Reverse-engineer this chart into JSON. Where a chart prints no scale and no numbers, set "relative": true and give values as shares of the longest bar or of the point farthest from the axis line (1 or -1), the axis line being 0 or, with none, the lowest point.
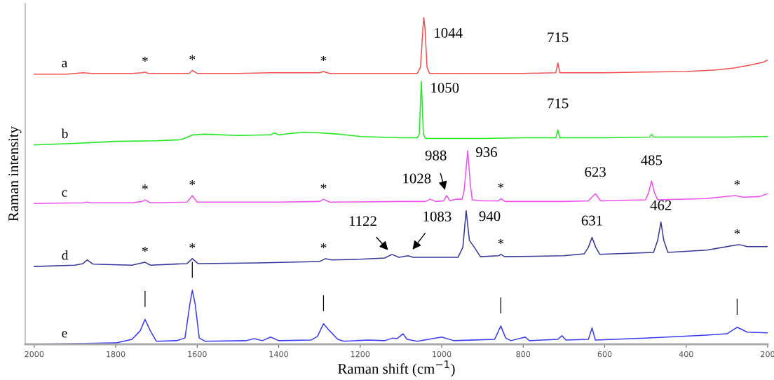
{
  "chart_data": {
    "type": "line",
    "relative": true,
    "xlabel": "Raman shift (cm$^{−1}$)",
    "ylabel": "Raman intensity",
    "xlim": [
      2022,
      200
    ],
    "xticks": [
      2000,
      1800,
      1600,
      1400,
      1200,
      1000,
      800,
      600,
      400,
      200
    ],
    "legend": false,
    "grid": false,
    "marker": "none",
    "line_style": "solid",
    "series": [
      {
        "name": "a",
        "color": "#f25050",
        "x": [
          2000,
          1920,
          1880,
          1860,
          1800,
          1760,
          1735,
          1728,
          1720,
          1620,
          1612,
          1600,
          1500,
          1420,
          1300,
          1290,
          1275,
          1100,
          1060,
          1052,
          1046,
          1044,
          1041,
          1036,
          1030,
          900,
          800,
          720,
          715,
          710,
          600,
          500,
          400,
          320,
          280,
          240,
          210,
          200
        ],
        "values": [
          0.827,
          0.827,
          0.831,
          0.829,
          0.829,
          0.829,
          0.831,
          0.833,
          0.829,
          0.829,
          0.838,
          0.829,
          0.829,
          0.831,
          0.831,
          0.835,
          0.829,
          0.829,
          0.829,
          0.848,
          0.968,
          1.0,
          0.968,
          0.848,
          0.829,
          0.829,
          0.829,
          0.831,
          0.861,
          0.831,
          0.831,
          0.833,
          0.835,
          0.84,
          0.846,
          0.855,
          0.864,
          0.87
        ]
      },
      {
        "name": "b",
        "color": "#22e622",
        "x": [
          2000,
          1900,
          1800,
          1700,
          1640,
          1610,
          1580,
          1500,
          1420,
          1410,
          1400,
          1340,
          1300,
          1250,
          1200,
          1100,
          1060,
          1055,
          1050,
          1045,
          1040,
          900,
          800,
          720,
          715,
          710,
          600,
          490,
          485,
          480,
          400,
          300,
          200
        ],
        "values": [
          0.61,
          0.615,
          0.621,
          0.623,
          0.626,
          0.641,
          0.643,
          0.639,
          0.641,
          0.647,
          0.641,
          0.649,
          0.647,
          0.643,
          0.636,
          0.632,
          0.632,
          0.643,
          0.805,
          0.643,
          0.63,
          0.63,
          0.632,
          0.632,
          0.656,
          0.632,
          0.632,
          0.634,
          0.643,
          0.634,
          0.634,
          0.634,
          0.636
        ]
      },
      {
        "name": "c",
        "color": "#f050f0",
        "x": [
          2000,
          1880,
          1870,
          1860,
          1760,
          1735,
          1728,
          1715,
          1625,
          1612,
          1600,
          1400,
          1300,
          1290,
          1275,
          1100,
          1040,
          1028,
          1015,
          995,
          988,
          980,
          965,
          950,
          945,
          936,
          930,
          925,
          900,
          860,
          855,
          845,
          700,
          640,
          623,
          610,
          500,
          492,
          485,
          478,
          470,
          350,
          280,
          260,
          220,
          200
        ],
        "values": [
          0.431,
          0.433,
          0.435,
          0.433,
          0.433,
          0.437,
          0.442,
          0.433,
          0.435,
          0.455,
          0.435,
          0.435,
          0.437,
          0.444,
          0.435,
          0.437,
          0.437,
          0.444,
          0.437,
          0.439,
          0.455,
          0.439,
          0.444,
          0.444,
          0.47,
          0.593,
          0.491,
          0.442,
          0.439,
          0.439,
          0.446,
          0.437,
          0.437,
          0.439,
          0.461,
          0.439,
          0.442,
          0.465,
          0.5,
          0.465,
          0.442,
          0.446,
          0.455,
          0.45,
          0.452,
          0.461
        ]
      },
      {
        "name": "d",
        "color": "#38389a",
        "x": [
          2000,
          1900,
          1880,
          1870,
          1855,
          1760,
          1728,
          1715,
          1625,
          1612,
          1598,
          1450,
          1300,
          1285,
          1270,
          1200,
          1140,
          1122,
          1105,
          1083,
          1070,
          960,
          948,
          940,
          932,
          920,
          905,
          860,
          855,
          845,
          700,
          650,
          640,
          631,
          622,
          612,
          480,
          470,
          462,
          455,
          445,
          350,
          280,
          270,
          250,
          200
        ],
        "values": [
          0.238,
          0.242,
          0.247,
          0.258,
          0.245,
          0.242,
          0.251,
          0.242,
          0.247,
          0.262,
          0.247,
          0.249,
          0.253,
          0.262,
          0.258,
          0.26,
          0.264,
          0.275,
          0.266,
          0.271,
          0.266,
          0.266,
          0.297,
          0.409,
          0.318,
          0.297,
          0.268,
          0.271,
          0.275,
          0.268,
          0.271,
          0.277,
          0.297,
          0.327,
          0.297,
          0.275,
          0.281,
          0.318,
          0.374,
          0.318,
          0.281,
          0.288,
          0.303,
          0.305,
          0.299,
          0.299
        ]
      },
      {
        "name": "e",
        "color": "#3a3af5",
        "x": [
          2000,
          1900,
          1800,
          1760,
          1740,
          1728,
          1715,
          1700,
          1650,
          1630,
          1618,
          1612,
          1605,
          1595,
          1580,
          1480,
          1460,
          1440,
          1420,
          1400,
          1320,
          1305,
          1290,
          1275,
          1255,
          1240,
          1180,
          1140,
          1120,
          1110,
          1095,
          1085,
          1060,
          1000,
          970,
          870,
          855,
          843,
          830,
          795,
          785,
          715,
          705,
          695,
          640,
          631,
          623,
          500,
          350,
          300,
          275,
          250,
          200
        ],
        "values": [
          0.0,
          0.002,
          0.004,
          0.015,
          0.041,
          0.076,
          0.041,
          0.009,
          0.011,
          0.019,
          0.123,
          0.165,
          0.123,
          0.019,
          0.009,
          0.011,
          0.017,
          0.011,
          0.022,
          0.011,
          0.013,
          0.024,
          0.063,
          0.041,
          0.015,
          0.009,
          0.013,
          0.011,
          0.019,
          0.017,
          0.032,
          0.015,
          0.009,
          0.022,
          0.011,
          0.015,
          0.056,
          0.019,
          0.011,
          0.022,
          0.011,
          0.015,
          0.026,
          0.013,
          0.015,
          0.05,
          0.013,
          0.019,
          0.028,
          0.032,
          0.052,
          0.037,
          0.035
        ]
      }
    ],
    "annotations": [
      {
        "text": "1044",
        "x": 1044,
        "y": 1.0
      },
      {
        "text": "715",
        "x": 715,
        "y": 0.861
      },
      {
        "text": "1050",
        "x": 1050,
        "y": 0.805
      },
      {
        "text": "715",
        "x": 715,
        "y": 0.656
      },
      {
        "text": "1028",
        "x": 1028,
        "y": 0.444
      },
      {
        "text": "988",
        "x": 988,
        "y": 0.455
      },
      {
        "text": "936",
        "x": 936,
        "y": 0.593
      },
      {
        "text": "623",
        "x": 623,
        "y": 0.461
      },
      {
        "text": "485",
        "x": 485,
        "y": 0.5
      },
      {
        "text": "1122",
        "x": 1122,
        "y": 0.275
      },
      {
        "text": "1083",
        "x": 1083,
        "y": 0.271
      },
      {
        "text": "940",
        "x": 940,
        "y": 0.409
      },
      {
        "text": "631",
        "x": 631,
        "y": 0.327
      },
      {
        "text": "462",
        "x": 462,
        "y": 0.374
      },
      {
        "text": "*",
        "x": 1728,
        "y": 0.833
      },
      {
        "text": "*",
        "x": 1612,
        "y": 0.838
      },
      {
        "text": "*",
        "x": 1290,
        "y": 0.835
      },
      {
        "text": "*",
        "x": 1728,
        "y": 0.442
      },
      {
        "text": "*",
        "x": 1612,
        "y": 0.455
      },
      {
        "text": "*",
        "x": 1290,
        "y": 0.444
      },
      {
        "text": "*",
        "x": 855,
        "y": 0.446
      },
      {
        "text": "*",
        "x": 275,
        "y": 0.455
      },
      {
        "text": "*",
        "x": 1728,
        "y": 0.251
      },
      {
        "text": "*",
        "x": 1612,
        "y": 0.262
      },
      {
        "text": "*",
        "x": 1290,
        "y": 0.262
      },
      {
        "text": "*",
        "x": 855,
        "y": 0.275
      },
      {
        "text": "*",
        "x": 275,
        "y": 0.305
      },
      {
        "text": "|",
        "x": 1728,
        "y": 0.076
      },
      {
        "text": "|",
        "x": 1612,
        "y": 0.165
      },
      {
        "text": "|",
        "x": 1290,
        "y": 0.063
      },
      {
        "text": "|",
        "x": 855,
        "y": 0.056
      },
      {
        "text": "|",
        "x": 275,
        "y": 0.052
      }
    ]
  }
}
